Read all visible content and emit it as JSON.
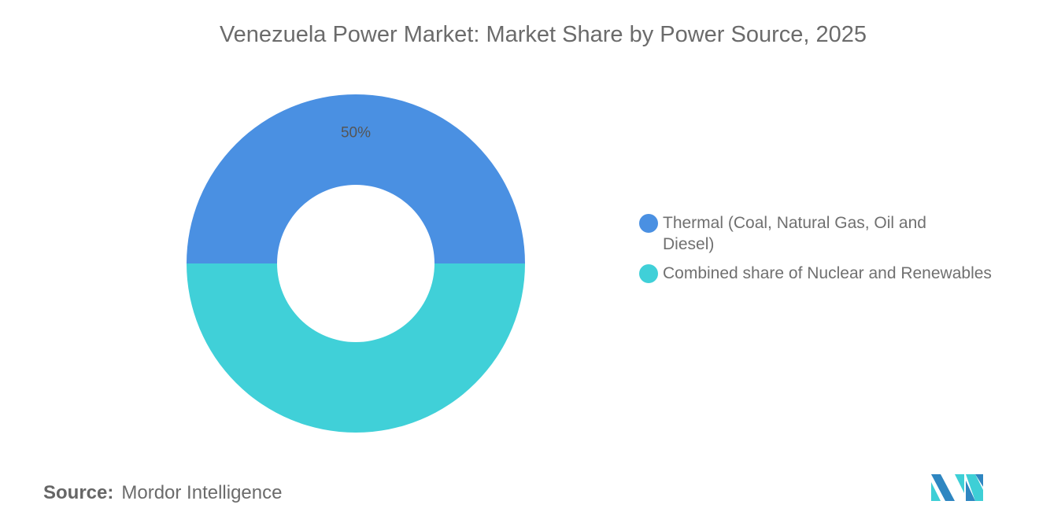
{
  "chart_data": {
    "type": "pie",
    "variant": "donut",
    "title": "Venezuela Power Market: Market Share by Power Source, 2025",
    "series": [
      {
        "name": "Thermal (Coal, Natural Gas, Oil and Diesel)",
        "value": 50,
        "label": "50%",
        "color": "#4A90E2"
      },
      {
        "name": "Combined share of Nuclear and Renewables",
        "value": 50,
        "label": "",
        "color": "#40D0D8"
      }
    ],
    "legend_position": "right"
  },
  "source": {
    "label": "Source:",
    "value": "Mordor Intelligence"
  },
  "logo": {
    "text": "Mordor Intelligence",
    "colors": [
      "#2E86C1",
      "#3ECFD6"
    ]
  }
}
